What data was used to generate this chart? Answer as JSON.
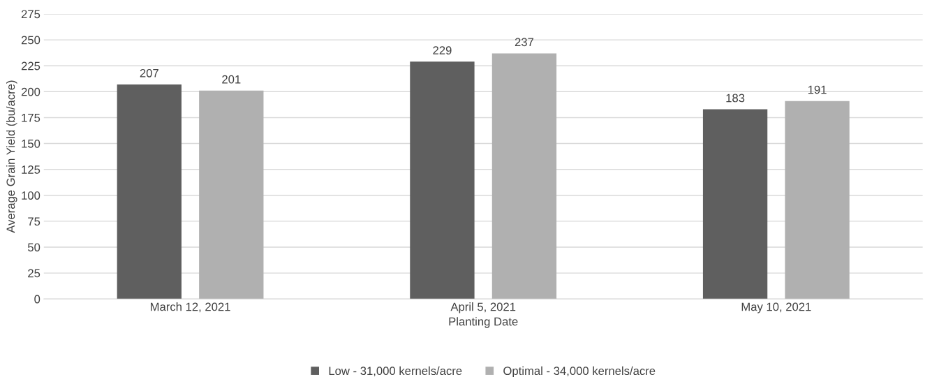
{
  "chart_data": {
    "type": "bar",
    "xlabel": "Planting Date",
    "ylabel": "Average Grain Yield (bu/acre)",
    "categories": [
      "March 12, 2021",
      "April 5, 2021",
      "May 10, 2021"
    ],
    "series": [
      {
        "name": "Low - 31,000 kernels/acre",
        "color": "#5f5f5f",
        "values": [
          207,
          229,
          183
        ]
      },
      {
        "name": "Optimal - 34,000 kernels/acre",
        "color": "#b0b0b0",
        "values": [
          201,
          237,
          191
        ]
      }
    ],
    "ylim": [
      0,
      275
    ],
    "yticks": [
      0,
      25,
      50,
      75,
      100,
      125,
      150,
      175,
      200,
      225,
      250,
      275
    ],
    "grid": "y",
    "legend": "bottom",
    "data_labels": true
  }
}
